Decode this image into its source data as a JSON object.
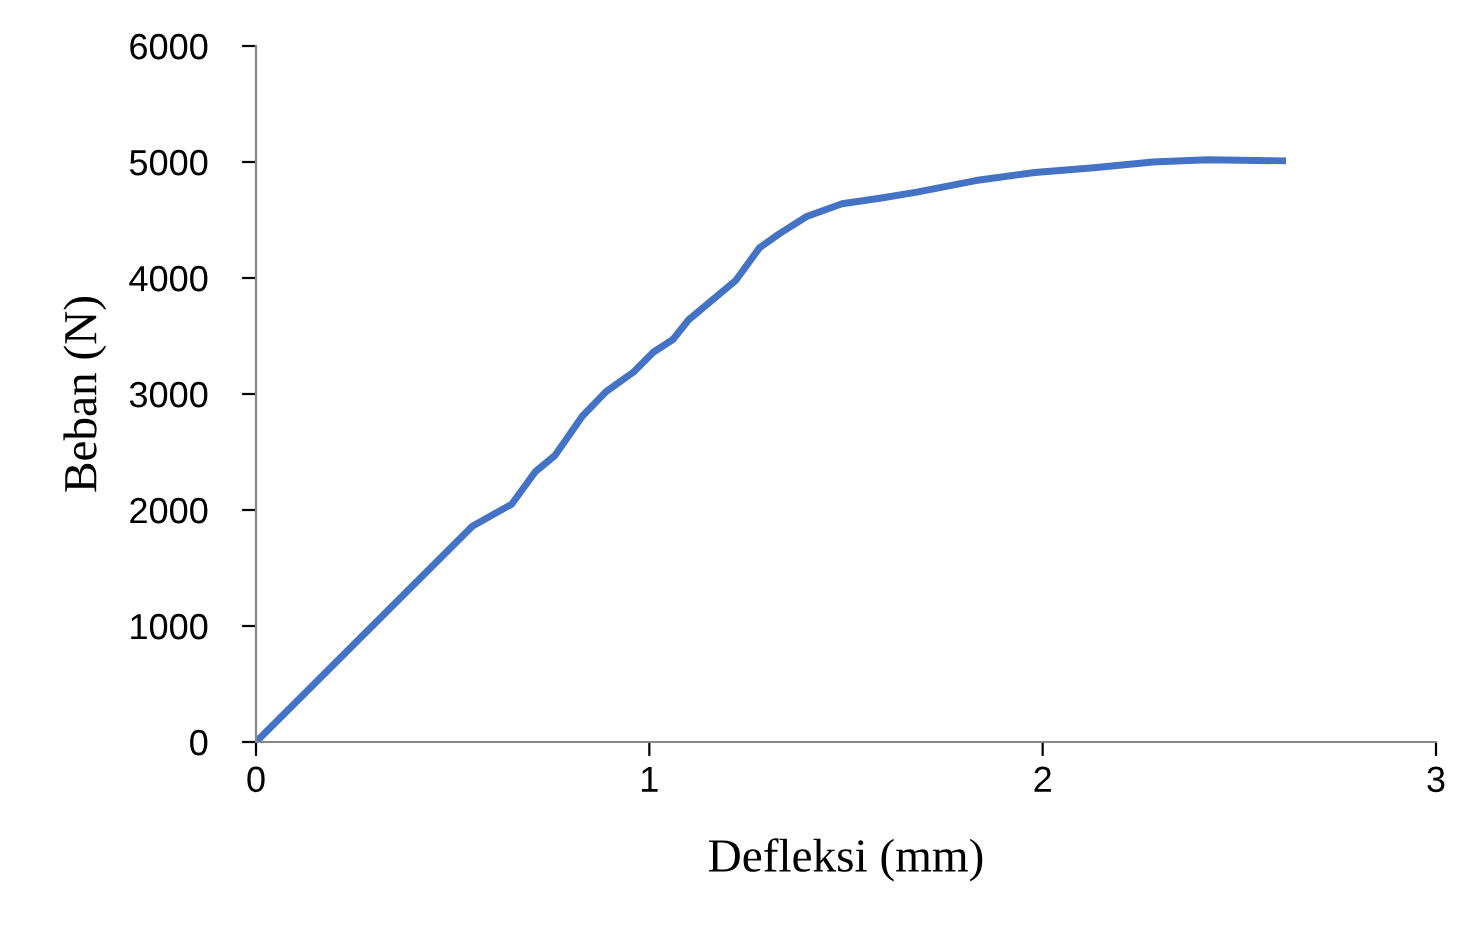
{
  "chart_data": {
    "type": "line",
    "xlabel": "Defleksi (mm)",
    "ylabel": "Beban (N)",
    "xlim": [
      0,
      3
    ],
    "xticks": [
      0,
      1,
      2,
      3
    ],
    "ylim": [
      0,
      6000
    ],
    "yticks": [
      0,
      1000,
      2000,
      3000,
      4000,
      5000,
      6000
    ],
    "grid": false,
    "legend": false,
    "marker": "none",
    "line_style": "solid",
    "series": [
      {
        "color": "#4472c4",
        "x": [
          0,
          0.55,
          0.65,
          0.71,
          0.76,
          0.83,
          0.89,
          0.96,
          1.01,
          1.06,
          1.1,
          1.22,
          1.28,
          1.33,
          1.4,
          1.49,
          1.59,
          1.68,
          1.83,
          1.98,
          2.13,
          2.28,
          2.42,
          2.61
        ],
        "values": [
          0,
          1860,
          2050,
          2330,
          2470,
          2810,
          3020,
          3190,
          3360,
          3470,
          3640,
          3980,
          4260,
          4380,
          4530,
          4640,
          4690,
          4740,
          4840,
          4910,
          4950,
          5000,
          5020,
          5010
        ]
      }
    ]
  }
}
